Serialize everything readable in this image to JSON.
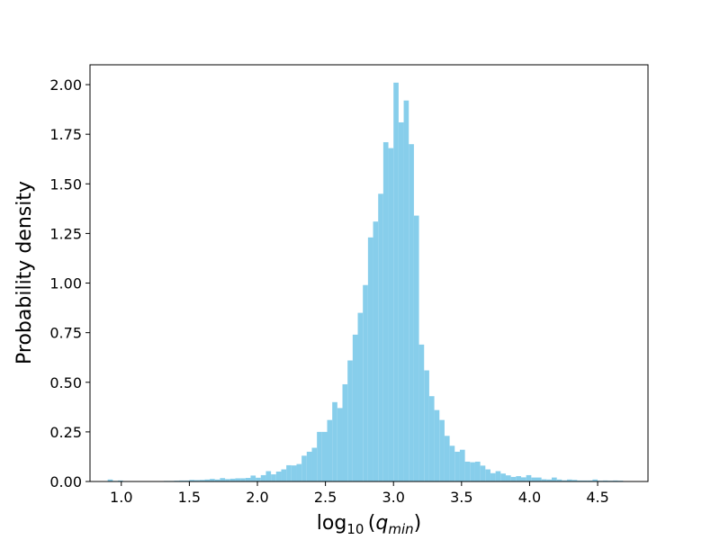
{
  "chart_data": {
    "type": "bar",
    "subtype": "histogram",
    "title": "",
    "xlabel": "log10(q_min)",
    "ylabel": "Probability density",
    "xlim": [
      0.77,
      4.87
    ],
    "ylim": [
      0,
      2.1
    ],
    "grid": false,
    "legend": "none",
    "bar_color": "#87ceeb",
    "x_ticks": [
      "1.0",
      "1.5",
      "2.0",
      "2.5",
      "3.0",
      "3.5",
      "4.0",
      "4.5"
    ],
    "y_ticks": [
      "0.00",
      "0.25",
      "0.50",
      "0.75",
      "1.00",
      "1.25",
      "1.50",
      "1.75",
      "2.00"
    ],
    "bin_width": 0.0375,
    "bin_starts": [
      0.9,
      0.9375,
      0.975,
      1.0125,
      1.05,
      1.0875,
      1.125,
      1.1625,
      1.2,
      1.2375,
      1.275,
      1.3125,
      1.35,
      1.3875,
      1.425,
      1.4625,
      1.5,
      1.5375,
      1.575,
      1.6125,
      1.65,
      1.6875,
      1.725,
      1.7625,
      1.8,
      1.8375,
      1.875,
      1.9125,
      1.95,
      1.9875,
      2.025,
      2.0625,
      2.1,
      2.1375,
      2.175,
      2.2125,
      2.25,
      2.2875,
      2.325,
      2.3625,
      2.4,
      2.4375,
      2.475,
      2.5125,
      2.55,
      2.5875,
      2.625,
      2.6625,
      2.7,
      2.7375,
      2.775,
      2.8125,
      2.85,
      2.8875,
      2.925,
      2.9625,
      3.0,
      3.0375,
      3.075,
      3.1125,
      3.15,
      3.1875,
      3.225,
      3.2625,
      3.3,
      3.3375,
      3.375,
      3.4125,
      3.45,
      3.4875,
      3.525,
      3.5625,
      3.6,
      3.6375,
      3.675,
      3.7125,
      3.75,
      3.7875,
      3.825,
      3.8625,
      3.9,
      3.9375,
      3.975,
      4.0125,
      4.05,
      4.0875,
      4.125,
      4.1625,
      4.2,
      4.2375,
      4.275,
      4.3125,
      4.35,
      4.3875,
      4.425,
      4.4625,
      4.5,
      4.5375,
      4.575,
      4.6125,
      4.65
    ],
    "values": [
      0.01,
      0.003,
      0.005,
      0.002,
      0.002,
      0.002,
      0.002,
      0.002,
      0.002,
      0.002,
      0.002,
      0.003,
      0.003,
      0.004,
      0.005,
      0.005,
      0.008,
      0.007,
      0.008,
      0.01,
      0.013,
      0.01,
      0.017,
      0.012,
      0.014,
      0.016,
      0.016,
      0.018,
      0.03,
      0.019,
      0.032,
      0.052,
      0.036,
      0.05,
      0.061,
      0.082,
      0.081,
      0.088,
      0.13,
      0.15,
      0.17,
      0.25,
      0.25,
      0.31,
      0.4,
      0.37,
      0.49,
      0.61,
      0.74,
      0.85,
      0.99,
      1.23,
      1.31,
      1.45,
      1.71,
      1.68,
      2.01,
      1.81,
      1.92,
      1.7,
      1.34,
      0.69,
      0.56,
      0.43,
      0.36,
      0.31,
      0.23,
      0.18,
      0.15,
      0.16,
      0.1,
      0.097,
      0.1,
      0.08,
      0.061,
      0.042,
      0.052,
      0.04,
      0.031,
      0.023,
      0.027,
      0.021,
      0.032,
      0.02,
      0.02,
      0.011,
      0.01,
      0.02,
      0.01,
      0.006,
      0.01,
      0.008,
      0.005,
      0.005,
      0.005,
      0.01,
      0.004,
      0.005,
      0.004,
      0.005,
      0.004
    ]
  }
}
